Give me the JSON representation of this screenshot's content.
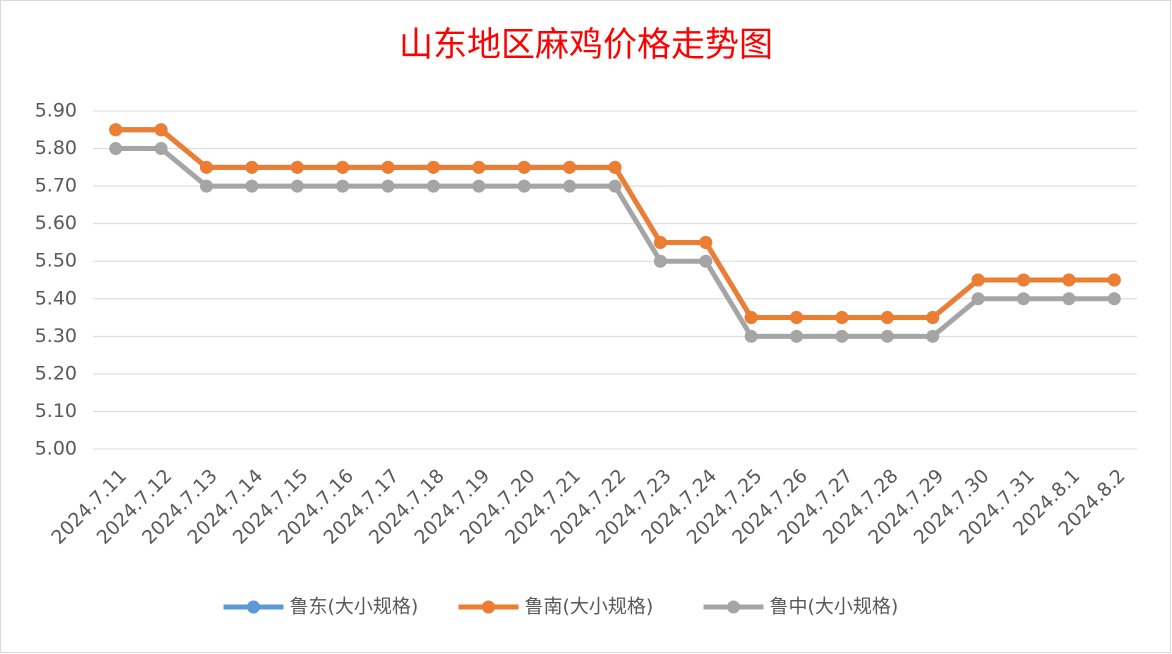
{
  "chart_data": {
    "type": "line",
    "title": "山东地区麻鸡价格走势图",
    "categories": [
      "2024.7.11",
      "2024.7.12",
      "2024.7.13",
      "2024.7.14",
      "2024.7.15",
      "2024.7.16",
      "2024.7.17",
      "2024.7.18",
      "2024.7.19",
      "2024.7.20",
      "2024.7.21",
      "2024.7.22",
      "2024.7.23",
      "2024.7.24",
      "2024.7.25",
      "2024.7.26",
      "2024.7.27",
      "2024.7.28",
      "2024.7.29",
      "2024.7.30",
      "2024.7.31",
      "2024.8.1",
      "2024.8.2"
    ],
    "series": [
      {
        "name": "鲁东(大小规格)",
        "color": "#5b9bd5",
        "values": [
          5.85,
          5.85,
          5.75,
          5.75,
          5.75,
          5.75,
          5.75,
          5.75,
          5.75,
          5.75,
          5.75,
          5.75,
          5.55,
          5.55,
          5.35,
          5.35,
          5.35,
          5.35,
          5.35,
          5.45,
          5.45,
          5.45,
          5.45
        ]
      },
      {
        "name": "鲁南(大小规格)",
        "color": "#ed7d31",
        "values": [
          5.85,
          5.85,
          5.75,
          5.75,
          5.75,
          5.75,
          5.75,
          5.75,
          5.75,
          5.75,
          5.75,
          5.75,
          5.55,
          5.55,
          5.35,
          5.35,
          5.35,
          5.35,
          5.35,
          5.45,
          5.45,
          5.45,
          5.45
        ]
      },
      {
        "name": "鲁中(大小规格)",
        "color": "#a5a5a5",
        "values": [
          5.8,
          5.8,
          5.7,
          5.7,
          5.7,
          5.7,
          5.7,
          5.7,
          5.7,
          5.7,
          5.7,
          5.7,
          5.5,
          5.5,
          5.3,
          5.3,
          5.3,
          5.3,
          5.3,
          5.4,
          5.4,
          5.4,
          5.4
        ]
      }
    ],
    "ylim": [
      5.0,
      5.9
    ],
    "yticks": [
      {
        "value": 5.0,
        "label": "5.00"
      },
      {
        "value": 5.1,
        "label": "5.10"
      },
      {
        "value": 5.2,
        "label": "5.20"
      },
      {
        "value": 5.3,
        "label": "5.30"
      },
      {
        "value": 5.4,
        "label": "5.40"
      },
      {
        "value": 5.5,
        "label": "5.50"
      },
      {
        "value": 5.6,
        "label": "5.60"
      },
      {
        "value": 5.7,
        "label": "5.70"
      },
      {
        "value": 5.8,
        "label": "5.80"
      },
      {
        "value": 5.9,
        "label": "5.90"
      }
    ],
    "grid": true,
    "legend": "bottom",
    "title_color": "#ff0000"
  }
}
